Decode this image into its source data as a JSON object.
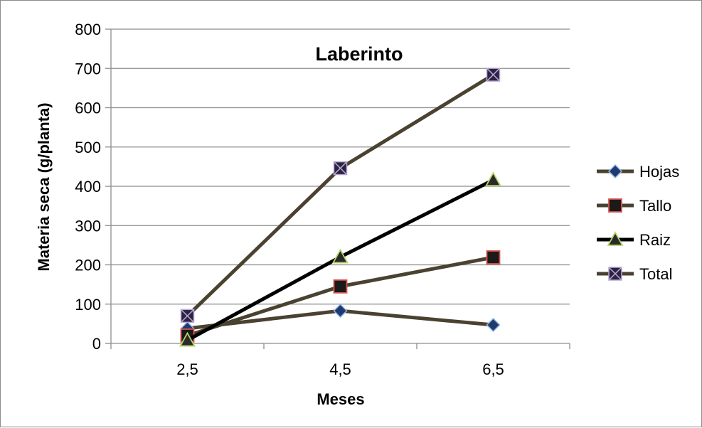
{
  "chart_data": {
    "type": "line",
    "title": "Laberinto",
    "xlabel": "Meses",
    "ylabel": "Materia seca (g/planta)",
    "categories": [
      "2,5",
      "4,5",
      "6,5"
    ],
    "ylim": [
      0,
      800
    ],
    "yticks": [
      0,
      100,
      200,
      300,
      400,
      500,
      600,
      700,
      800
    ],
    "grid": "horizontal",
    "legend_position": "right",
    "series": [
      {
        "name": "Hojas",
        "values": [
          38,
          83,
          47
        ],
        "color": "#4a4230",
        "marker": "diamond",
        "marker_fill": "#1f3a6e",
        "marker_stroke": "#8fb4e3"
      },
      {
        "name": "Tallo",
        "values": [
          20,
          145,
          219
        ],
        "color": "#4a4230",
        "marker": "square",
        "marker_fill": "#1a1a1a",
        "marker_stroke": "#d9534f"
      },
      {
        "name": "Raiz",
        "values": [
          8,
          220,
          416
        ],
        "color": "#000000",
        "marker": "triangle",
        "marker_fill": "#2a2a2a",
        "marker_stroke": "#b5d56a"
      },
      {
        "name": "Total",
        "values": [
          70,
          446,
          684
        ],
        "color": "#4a4230",
        "marker": "xsquare",
        "marker_fill": "#2b2340",
        "marker_stroke": "#b9a6d6"
      }
    ]
  }
}
